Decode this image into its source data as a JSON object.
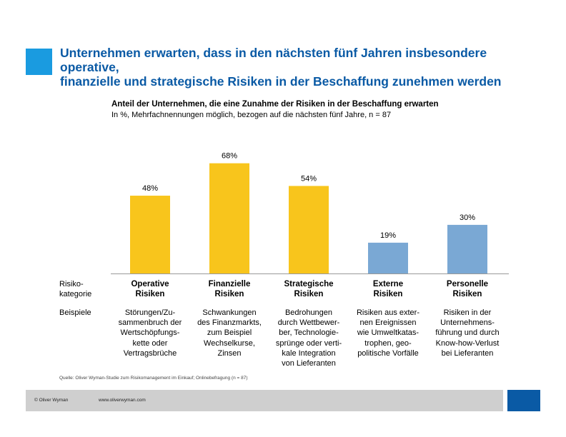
{
  "header": {
    "title_lines": [
      "Unternehmen erwarten, dass in den nächsten fünf Jahren insbesondere operative,",
      "finanzielle und strategische Risiken in der Beschaffung zunehmen werden"
    ]
  },
  "chart_data": {
    "type": "bar",
    "title": "Anteil der Unternehmen, die eine Zunahme der Risiken in der Beschaffung erwarten",
    "subtitle": "In %, Mehrfachnennungen möglich, bezogen auf die nächsten fünf Jahre, n = 87",
    "categories": [
      [
        "Operative",
        "Risiken"
      ],
      [
        "Finanzielle",
        "Risiken"
      ],
      [
        "Strategische",
        "Risiken"
      ],
      [
        "Externe",
        "Risiken"
      ],
      [
        "Personelle",
        "Risiken"
      ]
    ],
    "values": [
      48,
      68,
      54,
      19,
      30
    ],
    "value_labels": [
      "48%",
      "68%",
      "54%",
      "19%",
      "30%"
    ],
    "colors": [
      "#f8c51c",
      "#f8c51c",
      "#f8c51c",
      "#7aa8d4",
      "#7aa8d4"
    ],
    "ylim": [
      0,
      100
    ],
    "grid": false,
    "row_label_category": [
      "Risiko-",
      "kategorie"
    ],
    "row_label_examples": "Beispiele",
    "examples": [
      [
        "Störungen/Zu-",
        "sammenbruch der",
        "Wertschöpfungs-",
        "kette oder",
        "Vertragsbrüche"
      ],
      [
        "Schwankungen",
        "des Finanzmarkts,",
        "zum Beispiel",
        "Wechselkurse,",
        "Zinsen"
      ],
      [
        "Bedrohungen",
        "durch Wettbewer-",
        "ber, Technologie-",
        "sprünge oder verti-",
        "kale Integration",
        "von Lieferanten"
      ],
      [
        "Risiken aus exter-",
        "nen Ereignissen",
        "wie Umweltkatas-",
        "trophen, geo-",
        "politische Vorfälle"
      ],
      [
        "Risiken in der",
        "Unternehmens-",
        "führung und durch",
        "Know-how-Verlust",
        "bei Lieferanten"
      ]
    ],
    "source": "Quelle: Oliver Wyman-Studie zum Risikomanagement im Einkauf; Onlinebefragung (n = 87)"
  },
  "footer": {
    "copyright": "© Oliver Wyman",
    "url": "www.oliverwyman.com"
  },
  "colors": {
    "accent": "#1a9be0",
    "title": "#0a5aa5",
    "footer_bar": "#cfcfcf",
    "footer_square": "#0a5aa5"
  }
}
